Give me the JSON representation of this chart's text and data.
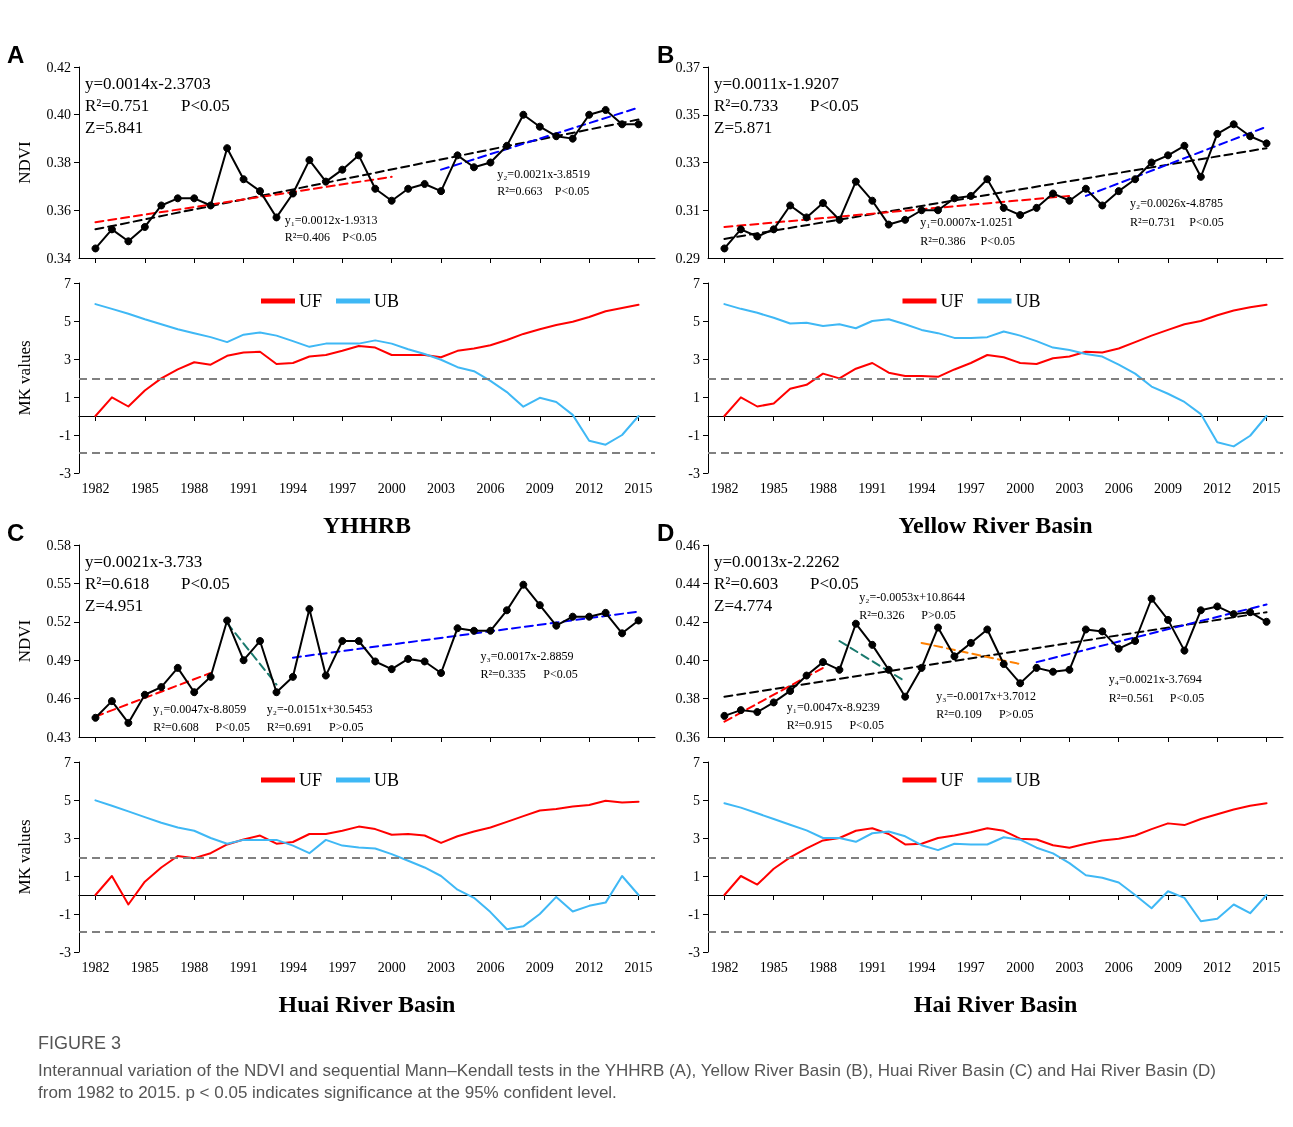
{
  "chart_data": [
    {
      "type": "line",
      "title": "A",
      "ylabel": "NDVI",
      "x": [
        1982,
        1983,
        1984,
        1985,
        1986,
        1987,
        1988,
        1989,
        1990,
        1991,
        1992,
        1993,
        1994,
        1995,
        1996,
        1997,
        1998,
        1999,
        2000,
        2001,
        2002,
        2003,
        2004,
        2005,
        2006,
        2007,
        2008,
        2009,
        2010,
        2011,
        2012,
        2013,
        2014,
        2015
      ],
      "xlim": [
        1981,
        2016
      ],
      "xticks": [
        1982,
        1985,
        1988,
        1991,
        1994,
        1997,
        2000,
        2003,
        2006,
        2009,
        2012,
        2015
      ],
      "ylim": [
        0.34,
        0.42
      ],
      "yticks": [
        0.34,
        0.36,
        0.38,
        {
          "value": 0.4,
          "label": "0.40"
        },
        0.42
      ],
      "tick_labels": "y",
      "grid": false,
      "legend": false,
      "annotations": [
        "y=0.0014x-2.3703",
        "R²=0.751",
        "P<0.05",
        "Z=5.841",
        "y₁=0.0012x-1.9313",
        "R²=0.406",
        "P<0.05",
        "y₂=0.0021x-3.8519",
        "R²=0.663",
        "P<0.05"
      ],
      "series": [
        {
          "color": "#000000",
          "marker": "circle",
          "line_style": "solid",
          "values": [
            0.344,
            0.352,
            0.347,
            0.353,
            0.362,
            0.365,
            0.365,
            0.362,
            0.386,
            0.373,
            0.368,
            0.357,
            0.367,
            0.381,
            0.372,
            0.377,
            0.383,
            0.369,
            0.364,
            0.369,
            0.371,
            0.368,
            0.383,
            0.378,
            0.38,
            0.387,
            0.4,
            0.395,
            0.391,
            0.39,
            0.4,
            0.402,
            0.396,
            0.396
          ]
        },
        {
          "color": "#000000",
          "marker": "none",
          "line_style": "dashed",
          "x": [
            1982,
            2015
          ],
          "values": [
            0.352,
            0.398
          ]
        },
        {
          "color": "#ff0000",
          "marker": "none",
          "line_style": "dashed",
          "x": [
            1982,
            2000
          ],
          "values": [
            0.355,
            0.374
          ]
        },
        {
          "color": "#0000ff",
          "marker": "none",
          "line_style": "dashed",
          "x": [
            2003,
            2015
          ],
          "values": [
            0.377,
            0.403
          ]
        }
      ]
    },
    {
      "type": "line",
      "title": "B",
      "x": [
        1982,
        1983,
        1984,
        1985,
        1986,
        1987,
        1988,
        1989,
        1990,
        1991,
        1992,
        1993,
        1994,
        1995,
        1996,
        1997,
        1998,
        1999,
        2000,
        2001,
        2002,
        2003,
        2004,
        2005,
        2006,
        2007,
        2008,
        2009,
        2010,
        2011,
        2012,
        2013,
        2014,
        2015
      ],
      "xlim": [
        1981,
        2016
      ],
      "xticks": [
        1982,
        1985,
        1988,
        1991,
        1994,
        1997,
        2000,
        2003,
        2006,
        2009,
        2012,
        2015
      ],
      "ylim": [
        0.29,
        0.37
      ],
      "yticks": [
        0.29,
        0.31,
        0.33,
        0.35,
        0.37
      ],
      "tick_labels": "y",
      "grid": false,
      "legend": false,
      "annotations": [
        "y=0.0011x-1.9207",
        "R²=0.733",
        "P<0.05",
        "Z=5.871",
        "y₁=0.0007x-1.0251",
        "R²=0.386",
        "P<0.05",
        "y₂=0.0026x-4.8785",
        "R²=0.731",
        "P<0.05"
      ],
      "series": [
        {
          "color": "#000000",
          "marker": "circle",
          "line_style": "solid",
          "values": [
            0.294,
            0.302,
            0.299,
            0.302,
            0.312,
            0.307,
            0.313,
            0.306,
            0.322,
            0.314,
            0.304,
            0.306,
            0.31,
            0.31,
            0.315,
            0.316,
            0.323,
            0.311,
            0.308,
            0.311,
            0.317,
            0.314,
            0.319,
            0.312,
            0.318,
            0.323,
            0.33,
            0.333,
            0.337,
            0.324,
            0.342,
            0.346,
            0.341,
            0.338
          ]
        },
        {
          "color": "#000000",
          "marker": "none",
          "line_style": "dashed",
          "x": [
            1982,
            2015
          ],
          "values": [
            0.298,
            0.336
          ]
        },
        {
          "color": "#ff0000",
          "marker": "none",
          "line_style": "dashed",
          "x": [
            1982,
            2003
          ],
          "values": [
            0.303,
            0.316
          ]
        },
        {
          "color": "#0000ff",
          "marker": "none",
          "line_style": "dashed",
          "x": [
            2004,
            2015
          ],
          "values": [
            0.316,
            0.345
          ]
        }
      ]
    },
    {
      "type": "line",
      "xlabel": "YHHRB",
      "ylabel": "MK values",
      "x": [
        1982,
        1983,
        1984,
        1985,
        1986,
        1987,
        1988,
        1989,
        1990,
        1991,
        1992,
        1993,
        1994,
        1995,
        1996,
        1997,
        1998,
        1999,
        2000,
        2001,
        2002,
        2003,
        2004,
        2005,
        2006,
        2007,
        2008,
        2009,
        2010,
        2011,
        2012,
        2013,
        2014,
        2015
      ],
      "xlim": [
        1981,
        2016
      ],
      "xticks": [
        1982,
        1985,
        1988,
        1991,
        1994,
        1997,
        2000,
        2003,
        2006,
        2009,
        2012,
        2015
      ],
      "ylim": [
        -3,
        7
      ],
      "yticks": [
        -3,
        -1,
        1,
        3,
        5,
        7
      ],
      "grid": false,
      "legend": "top",
      "marker": "none",
      "line_style": "solid",
      "ref_lines": [
        {
          "axis": "y",
          "value": 1.96,
          "color": "#808080",
          "line_style": "dashed"
        },
        {
          "axis": "y",
          "value": -1.96,
          "color": "#808080",
          "line_style": "dashed"
        }
      ],
      "series": [
        {
          "name": "UF",
          "color": "#ff0000",
          "values": [
            0,
            0.98,
            0.5,
            1.34,
            1.98,
            2.45,
            2.83,
            2.7,
            3.17,
            3.34,
            3.38,
            2.74,
            2.79,
            3.13,
            3.21,
            3.43,
            3.68,
            3.6,
            3.21,
            3.21,
            3.21,
            3.09,
            3.43,
            3.55,
            3.72,
            4.0,
            4.32,
            4.57,
            4.79,
            4.96,
            5.21,
            5.51,
            5.68,
            5.85
          ]
        },
        {
          "name": "UB",
          "color": "#3fb8f5",
          "values": [
            5.89,
            5.64,
            5.38,
            5.09,
            4.83,
            4.57,
            4.36,
            4.15,
            3.89,
            4.28,
            4.4,
            4.23,
            3.94,
            3.64,
            3.81,
            3.81,
            3.81,
            3.98,
            3.81,
            3.51,
            3.26,
            2.96,
            2.57,
            2.36,
            1.85,
            1.26,
            0.49,
            0.96,
            0.74,
            0.06,
            -1.3,
            -1.51,
            -1.0,
            0
          ]
        }
      ]
    },
    {
      "type": "line",
      "xlabel": "Yellow River Basin",
      "x": [
        1982,
        1983,
        1984,
        1985,
        1986,
        1987,
        1988,
        1989,
        1990,
        1991,
        1992,
        1993,
        1994,
        1995,
        1996,
        1997,
        1998,
        1999,
        2000,
        2001,
        2002,
        2003,
        2004,
        2005,
        2006,
        2007,
        2008,
        2009,
        2010,
        2011,
        2012,
        2013,
        2014,
        2015
      ],
      "xlim": [
        1981,
        2016
      ],
      "xticks": [
        1982,
        1985,
        1988,
        1991,
        1994,
        1997,
        2000,
        2003,
        2006,
        2009,
        2012,
        2015
      ],
      "ylim": [
        -3,
        7
      ],
      "yticks": [
        -3,
        -1,
        1,
        3,
        5,
        7
      ],
      "grid": false,
      "legend": "top",
      "marker": "none",
      "line_style": "solid",
      "ref_lines": [
        {
          "axis": "y",
          "value": 1.96,
          "color": "#808080",
          "line_style": "dashed"
        },
        {
          "axis": "y",
          "value": -1.96,
          "color": "#808080",
          "line_style": "dashed"
        }
      ],
      "series": [
        {
          "name": "UF",
          "color": "#ff0000",
          "values": [
            0,
            0.98,
            0.5,
            0.66,
            1.43,
            1.64,
            2.23,
            1.98,
            2.49,
            2.79,
            2.28,
            2.11,
            2.11,
            2.06,
            2.45,
            2.79,
            3.21,
            3.09,
            2.79,
            2.74,
            3.04,
            3.13,
            3.38,
            3.34,
            3.55,
            3.89,
            4.23,
            4.53,
            4.83,
            5.0,
            5.3,
            5.55,
            5.72,
            5.85
          ]
        },
        {
          "name": "UB",
          "color": "#3fb8f5",
          "values": [
            5.89,
            5.64,
            5.43,
            5.17,
            4.87,
            4.91,
            4.74,
            4.83,
            4.62,
            5.0,
            5.09,
            4.83,
            4.53,
            4.36,
            4.11,
            4.11,
            4.15,
            4.45,
            4.23,
            3.94,
            3.6,
            3.47,
            3.26,
            3.13,
            2.7,
            2.23,
            1.55,
            1.17,
            0.74,
            0.1,
            -1.38,
            -1.6,
            -1.04,
            0
          ]
        }
      ]
    },
    {
      "type": "line",
      "title": "C",
      "ylabel": "NDVI",
      "x": [
        1982,
        1983,
        1984,
        1985,
        1986,
        1987,
        1988,
        1989,
        1990,
        1991,
        1992,
        1993,
        1994,
        1995,
        1996,
        1997,
        1998,
        1999,
        2000,
        2001,
        2002,
        2003,
        2004,
        2005,
        2006,
        2007,
        2008,
        2009,
        2010,
        2011,
        2012,
        2013,
        2014,
        2015
      ],
      "xlim": [
        1981,
        2016
      ],
      "xticks": [
        1982,
        1985,
        1988,
        1991,
        1994,
        1997,
        2000,
        2003,
        2006,
        2009,
        2012,
        2015
      ],
      "ylim": [
        0.43,
        0.58
      ],
      "yticks": [
        0.43,
        0.46,
        0.49,
        0.52,
        0.55,
        0.58
      ],
      "tick_labels": "y",
      "grid": false,
      "legend": false,
      "annotations": [
        "y=0.0021x-3.733",
        "R²=0.618",
        "P<0.05",
        "Z=4.951",
        "y₁=0.0047x-8.8059",
        "R²=0.608",
        "P<0.05",
        "y₂=-0.0151x+30.5453",
        "R²=0.691",
        "P>0.05",
        "y₃=0.0017x-2.8859",
        "R²=0.335",
        "P<0.05"
      ],
      "series": [
        {
          "color": "#000000",
          "marker": "circle",
          "line_style": "solid",
          "values": [
            0.445,
            0.458,
            0.441,
            0.463,
            0.469,
            0.484,
            0.465,
            0.477,
            0.521,
            0.49,
            0.505,
            0.465,
            0.477,
            0.53,
            0.478,
            0.505,
            0.505,
            0.489,
            0.483,
            0.491,
            0.489,
            0.48,
            0.515,
            0.513,
            0.513,
            0.529,
            0.549,
            0.533,
            0.517,
            0.524,
            0.524,
            0.527,
            0.511,
            0.521
          ]
        },
        {
          "color": "#ff0000",
          "marker": "none",
          "line_style": "dashed",
          "x": [
            1982,
            1989
          ],
          "values": [
            0.446,
            0.48
          ]
        },
        {
          "color": "#1a7a6e",
          "marker": "none",
          "line_style": "dashed",
          "x": [
            1990,
            1993
          ],
          "values": [
            0.519,
            0.471
          ]
        },
        {
          "color": "#0000ff",
          "marker": "none",
          "line_style": "dashed",
          "x": [
            1994,
            2015
          ],
          "values": [
            0.492,
            0.528
          ]
        }
      ]
    },
    {
      "type": "line",
      "title": "D",
      "x": [
        1982,
        1983,
        1984,
        1985,
        1986,
        1987,
        1988,
        1989,
        1990,
        1991,
        1992,
        1993,
        1994,
        1995,
        1996,
        1997,
        1998,
        1999,
        2000,
        2001,
        2002,
        2003,
        2004,
        2005,
        2006,
        2007,
        2008,
        2009,
        2010,
        2011,
        2012,
        2013,
        2014,
        2015
      ],
      "xlim": [
        1981,
        2016
      ],
      "xticks": [
        1982,
        1985,
        1988,
        1991,
        1994,
        1997,
        2000,
        2003,
        2006,
        2009,
        2012,
        2015
      ],
      "ylim": [
        0.36,
        0.46
      ],
      "yticks": [
        0.36,
        0.38,
        {
          "value": 0.4,
          "label": "0.40"
        },
        0.42,
        0.44,
        0.46
      ],
      "tick_labels": "y",
      "grid": false,
      "legend": false,
      "annotations": [
        "y=0.0013x-2.2262",
        "R²=0.603",
        "P<0.05",
        "Z=4.774",
        "y₂=-0.0053x+10.8644",
        "R²=0.326",
        "P>0.05",
        "y₁=0.0047x-8.9239",
        "R²=0.915",
        "P<0.05",
        "y₃=-0.0017x+3.7012",
        "R²=0.109",
        "P>0.05",
        "y₄=0.0021x-3.7694",
        "R²=0.561",
        "P<0.05"
      ],
      "series": [
        {
          "color": "#000000",
          "marker": "circle",
          "line_style": "solid",
          "values": [
            0.371,
            0.374,
            0.373,
            0.378,
            0.384,
            0.392,
            0.399,
            0.395,
            0.419,
            0.408,
            0.395,
            0.381,
            0.396,
            0.417,
            0.402,
            0.409,
            0.416,
            0.398,
            0.388,
            0.396,
            0.394,
            0.395,
            0.416,
            0.415,
            0.406,
            0.41,
            0.432,
            0.421,
            0.405,
            0.426,
            0.428,
            0.424,
            0.425,
            0.42
          ]
        },
        {
          "color": "#000000",
          "marker": "none",
          "line_style": "dashed",
          "x": [
            1982,
            2015
          ],
          "values": [
            0.381,
            0.425
          ]
        },
        {
          "color": "#ff0000",
          "marker": "none",
          "line_style": "dashed",
          "x": [
            1982,
            1988
          ],
          "values": [
            0.368,
            0.396
          ]
        },
        {
          "color": "#1a7a6e",
          "marker": "none",
          "line_style": "dashed",
          "x": [
            1989,
            1993
          ],
          "values": [
            0.41,
            0.389
          ]
        },
        {
          "color": "#ff8000",
          "marker": "none",
          "line_style": "dashed",
          "x": [
            1994,
            2000
          ],
          "values": [
            0.409,
            0.398
          ]
        },
        {
          "color": "#0000ff",
          "marker": "none",
          "line_style": "dashed",
          "x": [
            2001,
            2015
          ],
          "values": [
            0.399,
            0.429
          ]
        }
      ]
    },
    {
      "type": "line",
      "xlabel": "Huai River Basin",
      "ylabel": "MK values",
      "x": [
        1982,
        1983,
        1984,
        1985,
        1986,
        1987,
        1988,
        1989,
        1990,
        1991,
        1992,
        1993,
        1994,
        1995,
        1996,
        1997,
        1998,
        1999,
        2000,
        2001,
        2002,
        2003,
        2004,
        2005,
        2006,
        2007,
        2008,
        2009,
        2010,
        2011,
        2012,
        2013,
        2014,
        2015
      ],
      "xlim": [
        1981,
        2016
      ],
      "xticks": [
        1982,
        1985,
        1988,
        1991,
        1994,
        1997,
        2000,
        2003,
        2006,
        2009,
        2012,
        2015
      ],
      "ylim": [
        -3,
        7
      ],
      "yticks": [
        -3,
        -1,
        1,
        3,
        5,
        7
      ],
      "grid": false,
      "legend": "top",
      "marker": "none",
      "line_style": "solid",
      "ref_lines": [
        {
          "axis": "y",
          "value": 1.96,
          "color": "#808080",
          "line_style": "dashed"
        },
        {
          "axis": "y",
          "value": -1.96,
          "color": "#808080",
          "line_style": "dashed"
        }
      ],
      "series": [
        {
          "name": "UF",
          "color": "#ff0000",
          "values": [
            0,
            1.0,
            -0.5,
            0.7,
            1.45,
            2.05,
            1.94,
            2.2,
            2.66,
            2.92,
            3.13,
            2.7,
            2.79,
            3.21,
            3.21,
            3.38,
            3.6,
            3.47,
            3.17,
            3.21,
            3.13,
            2.74,
            3.09,
            3.34,
            3.55,
            3.85,
            4.15,
            4.45,
            4.53,
            4.66,
            4.74,
            4.96,
            4.87,
            4.91
          ]
        },
        {
          "name": "UB",
          "color": "#3fb8f5",
          "values": [
            4.98,
            4.7,
            4.4,
            4.1,
            3.8,
            3.55,
            3.38,
            3.0,
            2.7,
            2.9,
            2.9,
            2.9,
            2.6,
            2.2,
            2.9,
            2.6,
            2.5,
            2.45,
            2.15,
            1.8,
            1.45,
            1.0,
            0.28,
            -0.15,
            -0.9,
            -1.8,
            -1.65,
            -1.0,
            -0.1,
            -0.87,
            -0.57,
            -0.4,
            1.0,
            0
          ]
        }
      ]
    },
    {
      "type": "line",
      "xlabel": "Hai River Basin",
      "x": [
        1982,
        1983,
        1984,
        1985,
        1986,
        1987,
        1988,
        1989,
        1990,
        1991,
        1992,
        1993,
        1994,
        1995,
        1996,
        1997,
        1998,
        1999,
        2000,
        2001,
        2002,
        2003,
        2004,
        2005,
        2006,
        2007,
        2008,
        2009,
        2010,
        2011,
        2012,
        2013,
        2014,
        2015
      ],
      "xlim": [
        1981,
        2016
      ],
      "xticks": [
        1982,
        1985,
        1988,
        1991,
        1994,
        1997,
        2000,
        2003,
        2006,
        2009,
        2012,
        2015
      ],
      "ylim": [
        -3,
        7
      ],
      "yticks": [
        -3,
        -1,
        1,
        3,
        5,
        7
      ],
      "grid": false,
      "legend": "top",
      "marker": "none",
      "line_style": "solid",
      "ref_lines": [
        {
          "axis": "y",
          "value": 1.96,
          "color": "#808080",
          "line_style": "dashed"
        },
        {
          "axis": "y",
          "value": -1.96,
          "color": "#808080",
          "line_style": "dashed"
        }
      ],
      "series": [
        {
          "name": "UF",
          "color": "#ff0000",
          "values": [
            0,
            1.0,
            0.55,
            1.38,
            1.98,
            2.45,
            2.87,
            3.0,
            3.38,
            3.51,
            3.21,
            2.66,
            2.7,
            3.0,
            3.13,
            3.3,
            3.51,
            3.38,
            2.96,
            2.92,
            2.62,
            2.49,
            2.7,
            2.87,
            2.96,
            3.13,
            3.47,
            3.77,
            3.68,
            4.0,
            4.25,
            4.5,
            4.7,
            4.83
          ]
        },
        {
          "name": "UB",
          "color": "#3fb8f5",
          "values": [
            4.83,
            4.6,
            4.3,
            4.0,
            3.7,
            3.4,
            3.0,
            3.0,
            2.8,
            3.25,
            3.34,
            3.09,
            2.62,
            2.36,
            2.7,
            2.66,
            2.66,
            3.04,
            2.91,
            2.49,
            2.19,
            1.68,
            1.04,
            0.91,
            0.66,
            0.0,
            -0.7,
            0.2,
            -0.15,
            -1.38,
            -1.25,
            -0.5,
            -0.96,
            0
          ]
        }
      ]
    },
    {
      "type": "other",
      "title": "FIGURE 3",
      "annotations": [
        "Interannual variation of the NDVI and sequential Mann–Kendall tests in the YHHRB (A), Yellow River Basin (B), Huai River Basin (C) and Hai River Basin (D) from 1982 to 2015. p < 0.05 indicates significance at the 95% confident level."
      ]
    }
  ]
}
